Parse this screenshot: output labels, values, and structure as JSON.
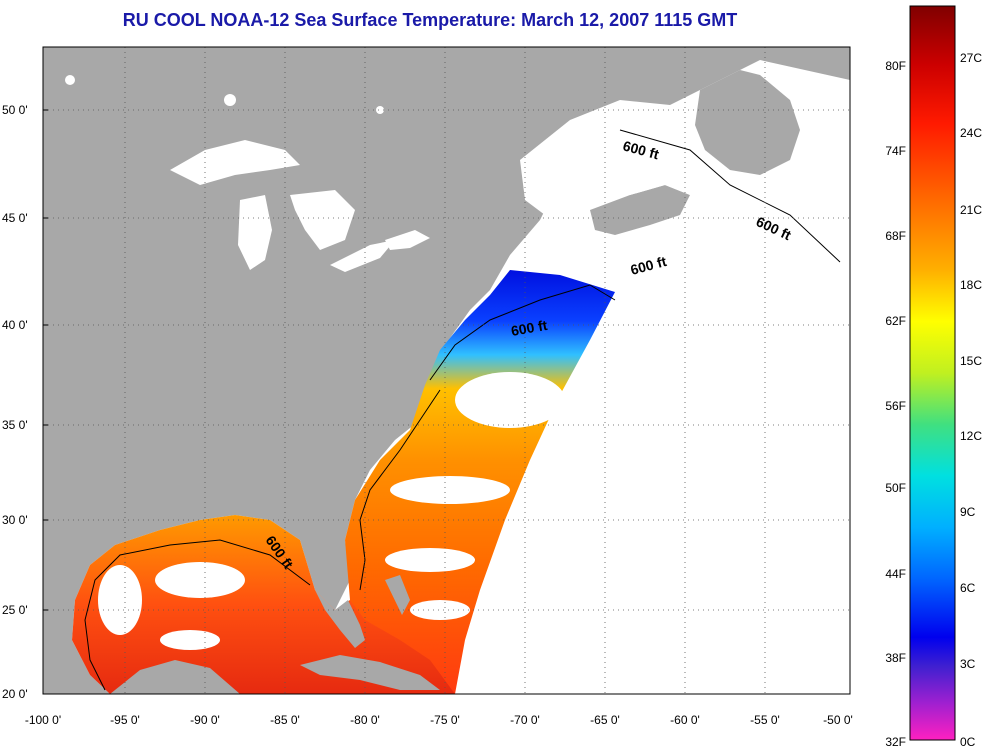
{
  "title": "RU COOL  NOAA-12  Sea Surface Temperature:  March 12, 2007 1115 GMT",
  "map": {
    "x_ticks": [
      "-100 0'",
      "-95 0'",
      "-90 0'",
      "-85 0'",
      "-80 0'",
      "-75 0'",
      "-70 0'",
      "-65 0'",
      "-60 0'",
      "-55 0'",
      "-50 0'"
    ],
    "y_ticks": [
      "50 0'",
      "45 0'",
      "40 0'",
      "35 0'",
      "30 0'",
      "25 0'",
      "20 0'"
    ],
    "contour_labels": [
      "600 ft",
      "600 ft",
      "600 ft",
      "600 ft",
      "600 ft"
    ],
    "colors": {
      "land": "#a8a8a8",
      "water_nodata": "#ffffff",
      "grid": "#555555"
    }
  },
  "colorbar": {
    "fahrenheit": [
      "80F",
      "74F",
      "68F",
      "62F",
      "56F",
      "50F",
      "44F",
      "38F",
      "32F"
    ],
    "celsius": [
      "27C",
      "24C",
      "21C",
      "18C",
      "15C",
      "12C",
      "9C",
      "6C",
      "3C",
      "0C"
    ]
  }
}
